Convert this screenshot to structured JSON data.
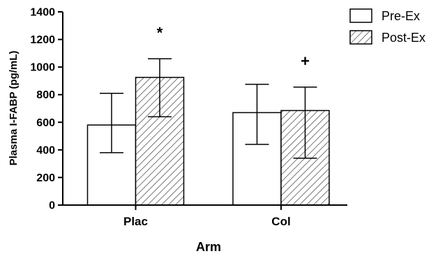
{
  "chart_data": {
    "type": "bar",
    "title": "",
    "xlabel": "Arm",
    "ylabel": "Plasma I-FABP (pg/mL)",
    "ylim": [
      0,
      1400
    ],
    "yticks": [
      0,
      200,
      400,
      600,
      800,
      1000,
      1200,
      1400
    ],
    "categories": [
      "Plac",
      "Col"
    ],
    "series": [
      {
        "name": "Pre-Ex",
        "values": [
          580,
          670
        ],
        "error_low": [
          380,
          440
        ],
        "error_high": [
          810,
          875
        ],
        "fill": "white",
        "annotations": [
          "",
          ""
        ]
      },
      {
        "name": "Post-Ex",
        "values": [
          925,
          685
        ],
        "error_low": [
          640,
          340
        ],
        "error_high": [
          1060,
          855
        ],
        "fill": "hatched",
        "annotations": [
          "*",
          "+"
        ]
      }
    ],
    "legend": "top-right",
    "grid": false
  },
  "colors": {
    "axis": "#000000",
    "bar_fill": "#ffffff",
    "hatch": "#555555"
  }
}
